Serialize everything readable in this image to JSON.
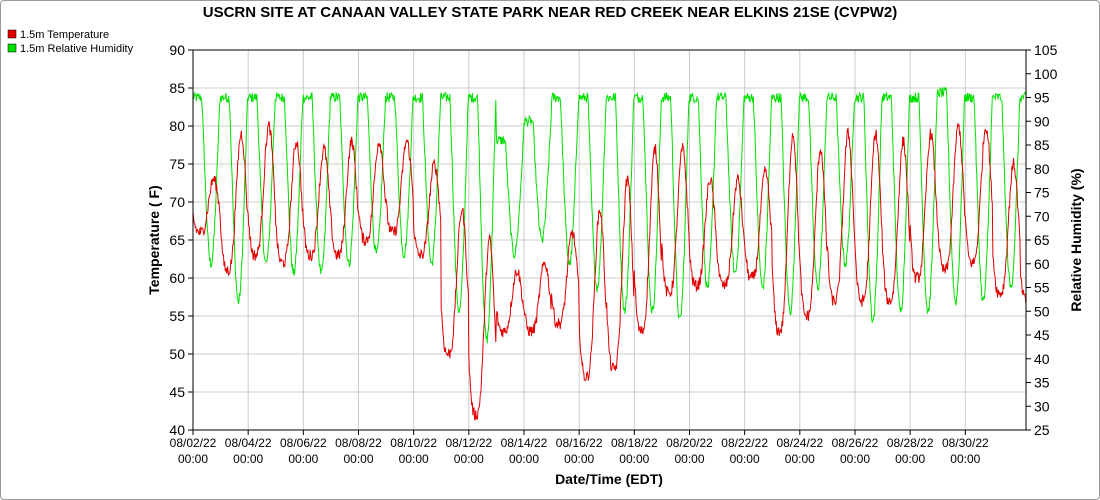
{
  "chart_data": {
    "type": "line",
    "title": "USCRN SITE AT CANAAN VALLEY STATE PARK NEAR RED CREEK NEAR ELKINS 21SE (CVPW2)",
    "xlabel": "Date/Time (EDT)",
    "ylabel_left": "Temperature ( F)",
    "ylabel_right": "Relative Humidity (%)",
    "ylim_left": [
      40,
      90
    ],
    "ylim_right": [
      25,
      105
    ],
    "yticks_left": [
      40,
      45,
      50,
      55,
      60,
      65,
      70,
      75,
      80,
      85,
      90
    ],
    "yticks_right": [
      25,
      30,
      35,
      40,
      45,
      50,
      55,
      60,
      65,
      70,
      75,
      80,
      85,
      90,
      95,
      100,
      105
    ],
    "x_range_days": [
      0,
      30.2
    ],
    "x_ticks": [
      {
        "day": 0,
        "date": "08/02/22",
        "time": "00:00"
      },
      {
        "day": 2,
        "date": "08/04/22",
        "time": "00:00"
      },
      {
        "day": 4,
        "date": "08/06/22",
        "time": "00:00"
      },
      {
        "day": 6,
        "date": "08/08/22",
        "time": "00:00"
      },
      {
        "day": 8,
        "date": "08/10/22",
        "time": "00:00"
      },
      {
        "day": 10,
        "date": "08/12/22",
        "time": "00:00"
      },
      {
        "day": 12,
        "date": "08/14/22",
        "time": "00:00"
      },
      {
        "day": 14,
        "date": "08/16/22",
        "time": "00:00"
      },
      {
        "day": 16,
        "date": "08/18/22",
        "time": "00:00"
      },
      {
        "day": 18,
        "date": "08/20/22",
        "time": "00:00"
      },
      {
        "day": 20,
        "date": "08/22/22",
        "time": "00:00"
      },
      {
        "day": 22,
        "date": "08/24/22",
        "time": "00:00"
      },
      {
        "day": 24,
        "date": "08/26/22",
        "time": "00:00"
      },
      {
        "day": 26,
        "date": "08/28/22",
        "time": "00:00"
      },
      {
        "day": 28,
        "date": "08/30/22",
        "time": "00:00"
      }
    ],
    "grid": true,
    "legend_position": "top-left",
    "series": [
      {
        "name": "1.5m Temperature",
        "axis": "left",
        "color": "#e00000",
        "daily_min": [
          66,
          61,
          63,
          62,
          63,
          63,
          65,
          66,
          63,
          50,
          42,
          53,
          53,
          54,
          47,
          48,
          53,
          58,
          59,
          59,
          60,
          53,
          55,
          57,
          57,
          57,
          60,
          61,
          62,
          58,
          57
        ],
        "daily_max": [
          73,
          79,
          80,
          78,
          77,
          78,
          78,
          78,
          75,
          69,
          65,
          61,
          62,
          66,
          69,
          73,
          77,
          77,
          73,
          73,
          74,
          79,
          77,
          79,
          79,
          78,
          79,
          80,
          80,
          75,
          67
        ]
      },
      {
        "name": "1.5m Relative Humidity",
        "axis": "right",
        "color": "#00e000",
        "daily_min": [
          60,
          52,
          60,
          58,
          58,
          60,
          62,
          62,
          60,
          50,
          44,
          62,
          65,
          60,
          55,
          50,
          50,
          48,
          55,
          58,
          55,
          50,
          55,
          60,
          48,
          50,
          50,
          52,
          52,
          55,
          55
        ],
        "daily_max": [
          95,
          95,
          95,
          95,
          95,
          95,
          95,
          95,
          95,
          95,
          95,
          86,
          90,
          95,
          95,
          95,
          95,
          95,
          95,
          95,
          95,
          95,
          95,
          95,
          95,
          95,
          95,
          96,
          95,
          95,
          95
        ]
      }
    ]
  }
}
